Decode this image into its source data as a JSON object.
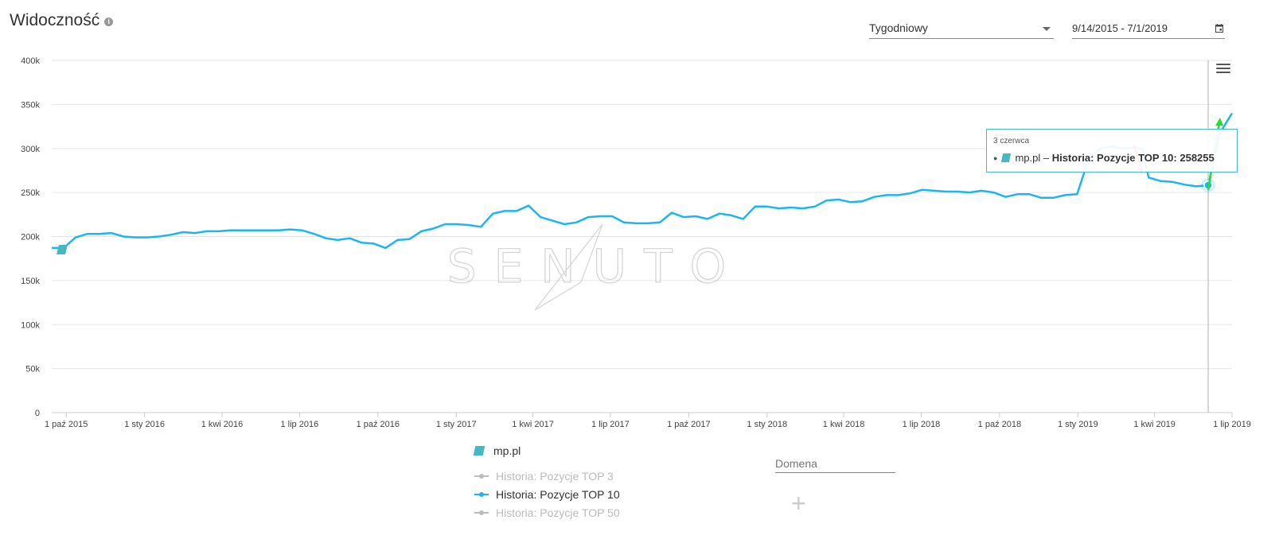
{
  "header": {
    "title": "Widoczność",
    "info_icon": "info-icon",
    "interval_select": "Tygodniowy",
    "date_range": "9/14/2015 - 7/1/2019",
    "calendar_icon": "calendar-icon"
  },
  "chart_menu_icon": "hamburger-menu-icon",
  "watermark": "SENUTO",
  "chart_data": {
    "type": "line",
    "x_tick_labels": [
      "1 paź 2015",
      "1 sty 2016",
      "1 kwi 2016",
      "1 lip 2016",
      "1 paź 2016",
      "1 sty 2017",
      "1 kwi 2017",
      "1 lip 2017",
      "1 paź 2017",
      "1 sty 2018",
      "1 kwi 2018",
      "1 lip 2018",
      "1 paź 2018",
      "1 sty 2019",
      "1 kwi 2019",
      "1 lip 2019"
    ],
    "y_tick_labels": [
      "0",
      "50k",
      "100k",
      "150k",
      "200k",
      "250k",
      "300k",
      "350k",
      "400k"
    ],
    "ylim": [
      0,
      400000
    ],
    "xlim": [
      "2015-09-14",
      "2019-07-01"
    ],
    "grid": true,
    "series": [
      {
        "name": "Historia: Pozycje TOP 10",
        "color": "#1cb5f3",
        "points": [
          [
            "2015-09-14",
            187000
          ],
          [
            "2015-09-28",
            187000
          ],
          [
            "2015-10-12",
            199000
          ],
          [
            "2015-10-26",
            203000
          ],
          [
            "2015-11-09",
            203000
          ],
          [
            "2015-11-23",
            204000
          ],
          [
            "2015-12-07",
            200000
          ],
          [
            "2015-12-21",
            199000
          ],
          [
            "2016-01-04",
            199000
          ],
          [
            "2016-01-18",
            200000
          ],
          [
            "2016-02-01",
            202000
          ],
          [
            "2016-02-15",
            205000
          ],
          [
            "2016-02-29",
            204000
          ],
          [
            "2016-03-14",
            206000
          ],
          [
            "2016-03-28",
            206000
          ],
          [
            "2016-04-11",
            207000
          ],
          [
            "2016-04-25",
            207000
          ],
          [
            "2016-05-09",
            207000
          ],
          [
            "2016-05-23",
            207000
          ],
          [
            "2016-06-06",
            207000
          ],
          [
            "2016-06-20",
            208000
          ],
          [
            "2016-07-04",
            207000
          ],
          [
            "2016-07-18",
            203000
          ],
          [
            "2016-08-01",
            198000
          ],
          [
            "2016-08-15",
            196000
          ],
          [
            "2016-08-29",
            198000
          ],
          [
            "2016-09-12",
            193000
          ],
          [
            "2016-09-26",
            192000
          ],
          [
            "2016-10-10",
            187000
          ],
          [
            "2016-10-24",
            196000
          ],
          [
            "2016-11-07",
            197000
          ],
          [
            "2016-11-21",
            206000
          ],
          [
            "2016-12-05",
            209000
          ],
          [
            "2016-12-19",
            214000
          ],
          [
            "2017-01-02",
            214000
          ],
          [
            "2017-01-16",
            213000
          ],
          [
            "2017-01-30",
            211000
          ],
          [
            "2017-02-13",
            226000
          ],
          [
            "2017-02-27",
            229000
          ],
          [
            "2017-03-13",
            229000
          ],
          [
            "2017-03-27",
            235000
          ],
          [
            "2017-04-10",
            222000
          ],
          [
            "2017-04-24",
            218000
          ],
          [
            "2017-05-08",
            214000
          ],
          [
            "2017-05-22",
            216000
          ],
          [
            "2017-06-05",
            222000
          ],
          [
            "2017-06-19",
            223000
          ],
          [
            "2017-07-03",
            223000
          ],
          [
            "2017-07-17",
            216000
          ],
          [
            "2017-07-31",
            215000
          ],
          [
            "2017-08-14",
            215000
          ],
          [
            "2017-08-28",
            216000
          ],
          [
            "2017-09-11",
            227000
          ],
          [
            "2017-09-25",
            222000
          ],
          [
            "2017-10-09",
            223000
          ],
          [
            "2017-10-23",
            220000
          ],
          [
            "2017-11-06",
            226000
          ],
          [
            "2017-11-20",
            224000
          ],
          [
            "2017-12-04",
            220000
          ],
          [
            "2017-12-18",
            234000
          ],
          [
            "2018-01-01",
            234000
          ],
          [
            "2018-01-15",
            232000
          ],
          [
            "2018-01-29",
            233000
          ],
          [
            "2018-02-12",
            232000
          ],
          [
            "2018-02-26",
            234000
          ],
          [
            "2018-03-12",
            241000
          ],
          [
            "2018-03-26",
            242000
          ],
          [
            "2018-04-09",
            239000
          ],
          [
            "2018-04-23",
            240000
          ],
          [
            "2018-05-07",
            245000
          ],
          [
            "2018-05-21",
            247000
          ],
          [
            "2018-06-04",
            247000
          ],
          [
            "2018-06-18",
            249000
          ],
          [
            "2018-07-02",
            253000
          ],
          [
            "2018-07-16",
            252000
          ],
          [
            "2018-07-30",
            251000
          ],
          [
            "2018-08-13",
            251000
          ],
          [
            "2018-08-27",
            250000
          ],
          [
            "2018-09-10",
            252000
          ],
          [
            "2018-09-24",
            250000
          ],
          [
            "2018-10-08",
            245000
          ],
          [
            "2018-10-22",
            248000
          ],
          [
            "2018-11-05",
            248000
          ],
          [
            "2018-11-19",
            244000
          ],
          [
            "2018-12-03",
            244000
          ],
          [
            "2018-12-17",
            247000
          ],
          [
            "2018-12-31",
            248000
          ],
          [
            "2019-01-14",
            289000
          ],
          [
            "2019-01-28",
            300000
          ],
          [
            "2019-02-11",
            302000
          ],
          [
            "2019-02-25",
            300000
          ],
          [
            "2019-03-11",
            301000
          ],
          [
            "2019-03-18",
            299000
          ],
          [
            "2019-03-25",
            267000
          ],
          [
            "2019-04-08",
            263000
          ],
          [
            "2019-04-22",
            262000
          ],
          [
            "2019-05-06",
            259000
          ],
          [
            "2019-05-20",
            257000
          ],
          [
            "2019-06-03",
            258255
          ],
          [
            "2019-06-17",
            318000
          ],
          [
            "2019-07-01",
            340000
          ]
        ]
      }
    ],
    "legend": {
      "domain": "mp.pl",
      "items": [
        {
          "label": "Historia: Pozycje TOP 3",
          "active": false,
          "color": "#bbbbbb"
        },
        {
          "label": "Historia: Pozycje TOP 10",
          "active": true,
          "color": "#1cb5f3"
        },
        {
          "label": "Historia: Pozycje TOP 50",
          "active": false,
          "color": "#bbbbbb"
        }
      ]
    },
    "tooltip": {
      "date": "3 czerwca",
      "domain": "mp.pl",
      "series": "Historia: Pozycje TOP 10",
      "value": "258255"
    }
  },
  "domain_input": {
    "placeholder": "Domena"
  },
  "add_button": "+"
}
